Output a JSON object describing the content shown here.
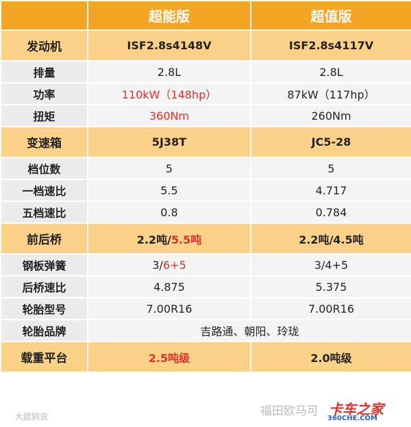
{
  "header": {
    "corner": "",
    "columns": [
      "超能版",
      "超值版"
    ]
  },
  "table": {
    "rows": [
      {
        "label": "发动机",
        "section": true,
        "cells": [
          [
            {
              "text": "ISF2.8s4148V"
            }
          ],
          [
            {
              "text": "ISF2.8s4117V"
            }
          ]
        ]
      },
      {
        "label": "排量",
        "cells": [
          [
            {
              "text": "2.8L"
            }
          ],
          [
            {
              "text": "2.8L"
            }
          ]
        ]
      },
      {
        "label": "功率",
        "cells": [
          [
            {
              "text": "110kW（148hp）",
              "red": true
            }
          ],
          [
            {
              "text": "87kW（117hp）"
            }
          ]
        ]
      },
      {
        "label": "扭矩",
        "cells": [
          [
            {
              "text": "360Nm",
              "red": true
            }
          ],
          [
            {
              "text": "260Nm"
            }
          ]
        ]
      },
      {
        "label": "变速箱",
        "section": true,
        "cells": [
          [
            {
              "text": "5J38T"
            }
          ],
          [
            {
              "text": "JC5-28"
            }
          ]
        ]
      },
      {
        "label": "档位数",
        "cells": [
          [
            {
              "text": "5"
            }
          ],
          [
            {
              "text": "5"
            }
          ]
        ]
      },
      {
        "label": "一档速比",
        "cells": [
          [
            {
              "text": "5.5"
            }
          ],
          [
            {
              "text": "4.717"
            }
          ]
        ]
      },
      {
        "label": "五档速比",
        "cells": [
          [
            {
              "text": "0.8"
            }
          ],
          [
            {
              "text": "0.784"
            }
          ]
        ]
      },
      {
        "label": "前后桥",
        "section": true,
        "cells": [
          [
            {
              "text": "2.2吨/"
            },
            {
              "text": "5.5吨",
              "red": true
            }
          ],
          [
            {
              "text": "2.2吨/4.5吨"
            }
          ]
        ]
      },
      {
        "label": "钢板弹簧",
        "cells": [
          [
            {
              "text": "3/"
            },
            {
              "text": "6+5",
              "red": true
            }
          ],
          [
            {
              "text": "3/4+5"
            }
          ]
        ]
      },
      {
        "label": "后桥速比",
        "cells": [
          [
            {
              "text": "4.875"
            }
          ],
          [
            {
              "text": "5.375"
            }
          ]
        ]
      },
      {
        "label": "轮胎型号",
        "cells": [
          [
            {
              "text": "7.00R16"
            }
          ],
          [
            {
              "text": "7.00R16"
            }
          ]
        ]
      },
      {
        "label": "轮胎品牌",
        "cells": [
          [
            {
              "text": "吉路通、朝阳、玲珑"
            }
          ]
        ]
      },
      {
        "label": "载重平台",
        "section": true,
        "cells": [
          [
            {
              "text": "2.5吨级",
              "red": true
            }
          ],
          [
            {
              "text": "2.0吨级"
            }
          ]
        ]
      }
    ]
  },
  "footer": {
    "left": "大欧鸦说",
    "middle": "福田欧马可",
    "logo": "卡车之家",
    "site": "360CHE.COM"
  }
}
